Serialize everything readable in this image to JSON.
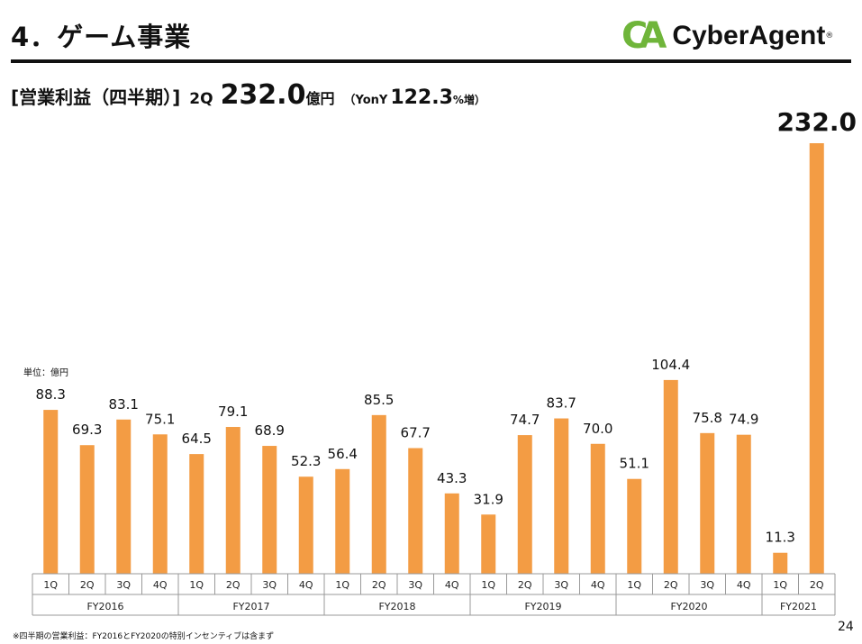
{
  "header": {
    "title": "4．ゲーム事業",
    "logo_text": "CyberAgent",
    "logo_mark": "CA"
  },
  "subtitle": {
    "bracket_label": "[営業利益（四半期）]",
    "period": "2Q",
    "value": "232.0",
    "unit": "億円",
    "yoy_label": "（YonY",
    "yoy_value": "122.3",
    "yoy_unit": "%増）"
  },
  "unit_label": "単位：億円",
  "footnote": "※四半期の営業利益：FY2016とFY2020の特別インセンティブは含まず",
  "page_number": "24",
  "colors": {
    "bar": "#f39c44",
    "axis": "#999999",
    "title_rule": "#111111",
    "logo_green": "#6fb53a"
  },
  "chart_data": {
    "type": "bar",
    "categories": [
      "1Q",
      "2Q",
      "3Q",
      "4Q",
      "1Q",
      "2Q",
      "3Q",
      "4Q",
      "1Q",
      "2Q",
      "3Q",
      "4Q",
      "1Q",
      "2Q",
      "3Q",
      "4Q",
      "1Q",
      "2Q",
      "3Q",
      "4Q",
      "1Q",
      "2Q"
    ],
    "groups": [
      {
        "label": "FY2016",
        "count": 4
      },
      {
        "label": "FY2017",
        "count": 4
      },
      {
        "label": "FY2018",
        "count": 4
      },
      {
        "label": "FY2019",
        "count": 4
      },
      {
        "label": "FY2020",
        "count": 4
      },
      {
        "label": "FY2021",
        "count": 2
      }
    ],
    "values": [
      88.3,
      69.3,
      83.1,
      75.1,
      64.5,
      79.1,
      68.9,
      52.3,
      56.4,
      85.5,
      67.7,
      43.3,
      31.9,
      74.7,
      83.7,
      70.0,
      51.1,
      104.4,
      75.8,
      74.9,
      11.3,
      232.0
    ],
    "value_labels": [
      "88.3",
      "69.3",
      "83.1",
      "75.1",
      "64.5",
      "79.1",
      "68.9",
      "52.3",
      "56.4",
      "85.5",
      "67.7",
      "43.3",
      "31.9",
      "74.7",
      "83.7",
      "70.0",
      "51.1",
      "104.4",
      "75.8",
      "74.9",
      "11.3",
      "232.0"
    ],
    "ylim": [
      0,
      232
    ],
    "grid": false,
    "legend": "none",
    "title": "",
    "xlabel": "",
    "ylabel": ""
  }
}
